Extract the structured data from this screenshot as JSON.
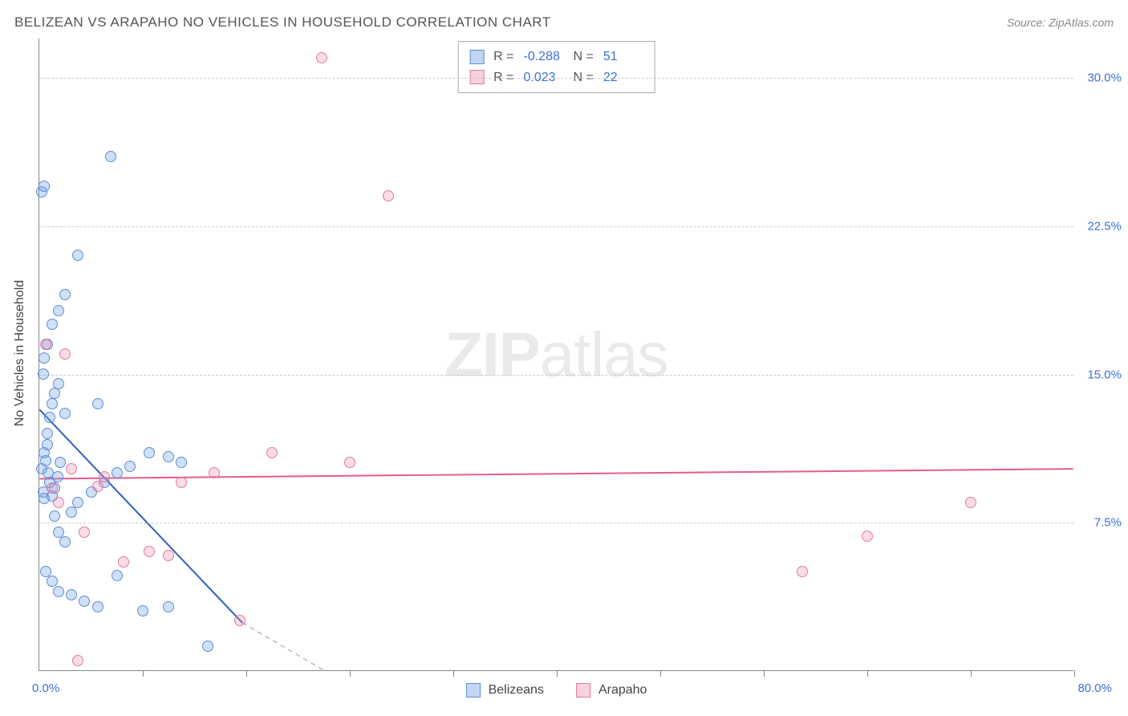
{
  "header": {
    "title": "BELIZEAN VS ARAPAHO NO VEHICLES IN HOUSEHOLD CORRELATION CHART",
    "source": "Source: ZipAtlas.com"
  },
  "watermark": {
    "part1": "ZIP",
    "part2": "atlas"
  },
  "chart": {
    "type": "scatter",
    "background_color": "#ffffff",
    "grid_color": "#cccccc",
    "axis_color": "#888888",
    "text_color": "#555555",
    "tick_label_color": "#3b6fd6",
    "ylabel": "No Vehicles in Household",
    "ylabel_fontsize": 16,
    "xlim": [
      0,
      80
    ],
    "ylim": [
      0,
      32
    ],
    "yticks": [
      7.5,
      15.0,
      22.5,
      30.0
    ],
    "ytick_labels": [
      "7.5%",
      "15.0%",
      "22.5%",
      "30.0%"
    ],
    "xticks": [
      8,
      16,
      24,
      32,
      40,
      48,
      56,
      64,
      72,
      80
    ],
    "x_origin_label": "0.0%",
    "x_max_label": "80.0%",
    "marker_size": 14,
    "series": [
      {
        "name": "Belizeans",
        "fill_color": "rgba(120,165,230,0.35)",
        "stroke_color": "#5b8dd8",
        "r_value": "-0.288",
        "n_value": "51",
        "regression": {
          "color": "#2f5fc0",
          "width": 2,
          "x1": 0,
          "y1": 13.2,
          "x2": 15.7,
          "y2": 2.4,
          "ext_x2": 22,
          "ext_y2": 0,
          "ext_dash": "6,5",
          "ext_color": "#999999"
        },
        "points": [
          [
            0.2,
            10.2
          ],
          [
            0.4,
            11.0
          ],
          [
            0.5,
            10.6
          ],
          [
            0.6,
            11.4
          ],
          [
            0.7,
            10.0
          ],
          [
            0.8,
            9.5
          ],
          [
            0.3,
            9.0
          ],
          [
            0.4,
            8.7
          ],
          [
            1.0,
            8.8
          ],
          [
            1.2,
            9.2
          ],
          [
            1.4,
            9.8
          ],
          [
            1.6,
            10.5
          ],
          [
            0.6,
            12.0
          ],
          [
            0.8,
            12.8
          ],
          [
            1.0,
            13.5
          ],
          [
            1.2,
            14.0
          ],
          [
            1.5,
            14.5
          ],
          [
            0.3,
            15.0
          ],
          [
            0.4,
            15.8
          ],
          [
            0.6,
            16.5
          ],
          [
            1.0,
            17.5
          ],
          [
            1.5,
            18.2
          ],
          [
            2.0,
            19.0
          ],
          [
            3.0,
            21.0
          ],
          [
            5.5,
            26.0
          ],
          [
            0.2,
            24.2
          ],
          [
            0.4,
            24.5
          ],
          [
            1.2,
            7.8
          ],
          [
            1.5,
            7.0
          ],
          [
            2.0,
            6.5
          ],
          [
            2.5,
            8.0
          ],
          [
            3.0,
            8.5
          ],
          [
            4.0,
            9.0
          ],
          [
            5.0,
            9.5
          ],
          [
            6.0,
            10.0
          ],
          [
            7.0,
            10.3
          ],
          [
            8.5,
            11.0
          ],
          [
            10.0,
            10.8
          ],
          [
            11.0,
            10.5
          ],
          [
            0.5,
            5.0
          ],
          [
            1.0,
            4.5
          ],
          [
            1.5,
            4.0
          ],
          [
            2.5,
            3.8
          ],
          [
            3.5,
            3.5
          ],
          [
            4.5,
            3.2
          ],
          [
            6.0,
            4.8
          ],
          [
            8.0,
            3.0
          ],
          [
            10.0,
            3.2
          ],
          [
            13.0,
            1.2
          ],
          [
            2.0,
            13.0
          ],
          [
            4.5,
            13.5
          ]
        ]
      },
      {
        "name": "Arapaho",
        "fill_color": "rgba(235,140,170,0.30)",
        "stroke_color": "#e07ba3",
        "r_value": "0.023",
        "n_value": "22",
        "regression": {
          "color": "#e85a8f",
          "width": 2,
          "x1": 0,
          "y1": 9.7,
          "x2": 80,
          "y2": 10.2
        },
        "points": [
          [
            0.5,
            16.5
          ],
          [
            1.0,
            9.2
          ],
          [
            1.5,
            8.5
          ],
          [
            2.0,
            16.0
          ],
          [
            2.5,
            10.2
          ],
          [
            3.5,
            7.0
          ],
          [
            4.5,
            9.3
          ],
          [
            5.0,
            9.8
          ],
          [
            6.5,
            5.5
          ],
          [
            8.5,
            6.0
          ],
          [
            10.0,
            5.8
          ],
          [
            11.0,
            9.5
          ],
          [
            13.5,
            10.0
          ],
          [
            15.5,
            2.5
          ],
          [
            18.0,
            11.0
          ],
          [
            21.8,
            31.0
          ],
          [
            27.0,
            24.0
          ],
          [
            24.0,
            10.5
          ],
          [
            59.0,
            5.0
          ],
          [
            64.0,
            6.8
          ],
          [
            72.0,
            8.5
          ],
          [
            3.0,
            0.5
          ]
        ]
      }
    ]
  },
  "stats_legend": {
    "r_label": "R =",
    "n_label": "N ="
  },
  "bottom_legend": {
    "s1": "Belizeans",
    "s2": "Arapaho"
  }
}
